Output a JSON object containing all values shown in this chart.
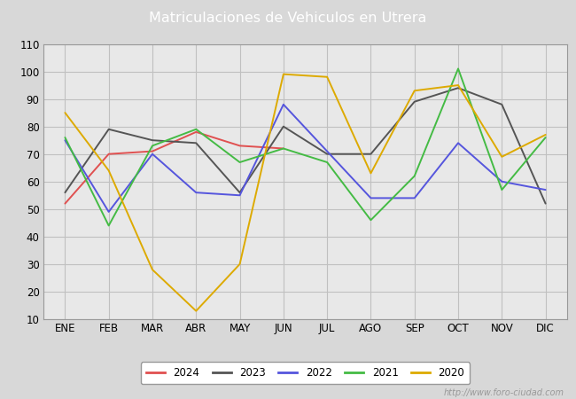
{
  "title": "Matriculaciones de Vehiculos en Utrera",
  "title_bg_color": "#4d7ebf",
  "title_text_color": "#ffffff",
  "months": [
    "ENE",
    "FEB",
    "MAR",
    "ABR",
    "MAY",
    "JUN",
    "JUL",
    "AGO",
    "SEP",
    "OCT",
    "NOV",
    "DIC"
  ],
  "ylim": [
    10,
    110
  ],
  "yticks": [
    10,
    20,
    30,
    40,
    50,
    60,
    70,
    80,
    90,
    100,
    110
  ],
  "series": {
    "2024": {
      "color": "#e05050",
      "data": [
        52,
        70,
        71,
        78,
        73,
        72,
        null,
        null,
        null,
        null,
        null,
        null
      ]
    },
    "2023": {
      "color": "#555555",
      "data": [
        56,
        79,
        75,
        74,
        56,
        80,
        70,
        70,
        89,
        94,
        88,
        52
      ]
    },
    "2022": {
      "color": "#5555dd",
      "data": [
        75,
        49,
        70,
        56,
        55,
        88,
        71,
        54,
        54,
        74,
        60,
        57
      ]
    },
    "2021": {
      "color": "#44bb44",
      "data": [
        76,
        44,
        73,
        79,
        67,
        72,
        67,
        46,
        62,
        101,
        57,
        76
      ]
    },
    "2020": {
      "color": "#ddaa00",
      "data": [
        85,
        64,
        28,
        13,
        30,
        99,
        98,
        63,
        93,
        95,
        69,
        77
      ]
    }
  },
  "watermark": "http://www.foro-ciudad.com",
  "outer_bg_color": "#d8d8d8",
  "plot_bg_color": "#e8e8e8",
  "grid_color": "#c0c0c0",
  "series_order": [
    "2024",
    "2023",
    "2022",
    "2021",
    "2020"
  ]
}
